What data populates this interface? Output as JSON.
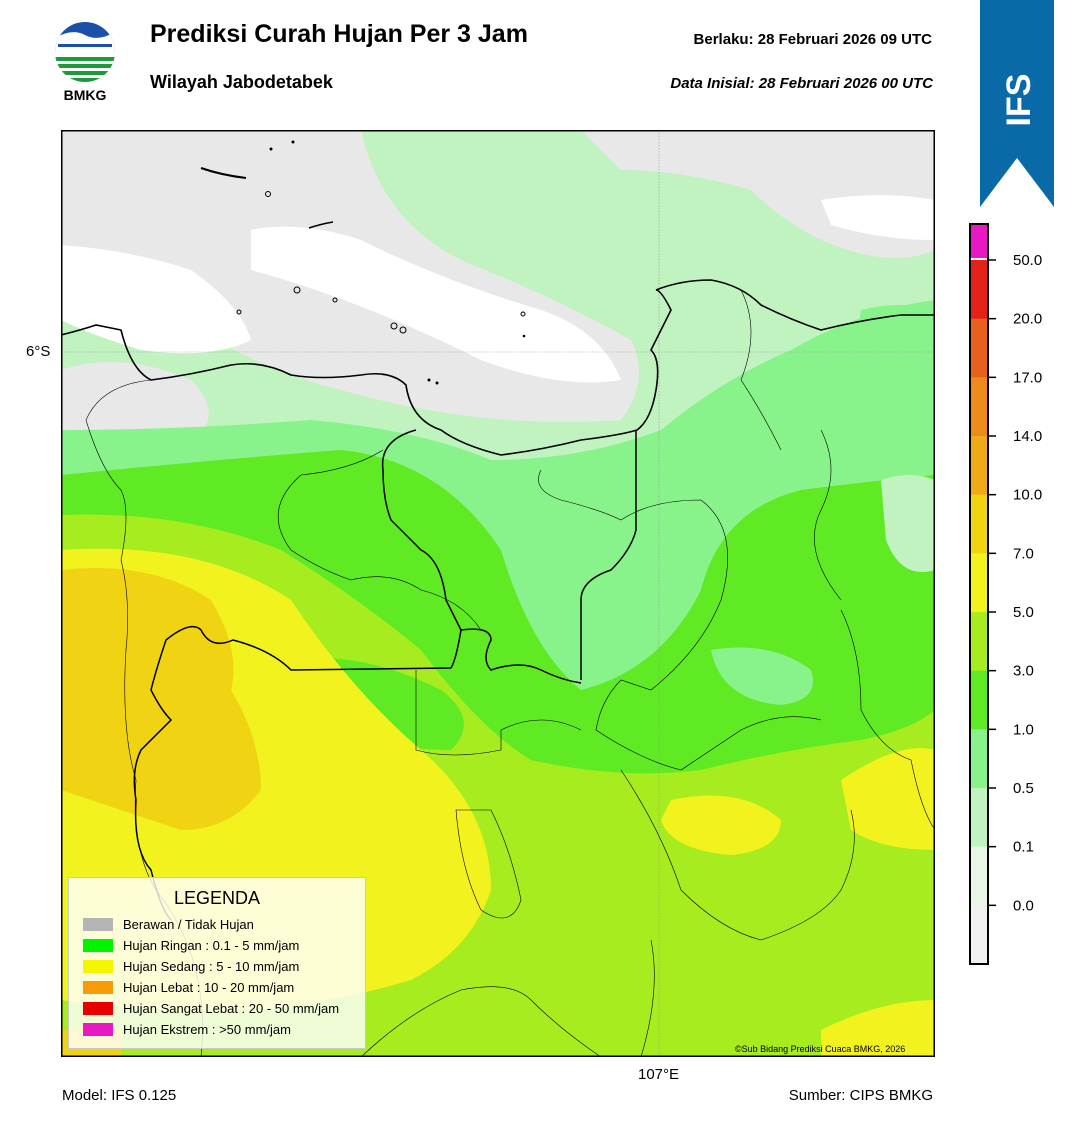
{
  "header": {
    "title": "Prediksi Curah Hujan Per 3 Jam",
    "subtitle": "Wilayah Jabodetabek",
    "valid_time": "Berlaku:  28 Februari 2026 09 UTC",
    "initial_data": "Data Inisial:  28 Februari 2026 00 UTC"
  },
  "logo": {
    "text": "BMKG",
    "icon": "bmkg-logo-icon"
  },
  "banner": {
    "text": "IFS",
    "color": "#0a6aa8"
  },
  "map": {
    "lat_label": "6°S",
    "lon_label": "107°E",
    "copyright": "©Sub Bidang Prediksi Cuaca BMKG, 2026"
  },
  "legend": {
    "title": "LEGENDA",
    "items": [
      {
        "label": "Berawan / Tidak Hujan",
        "color": "#b5b5b5"
      },
      {
        "label": "Hujan Ringan : 0.1 - 5 mm/jam",
        "color": "#00f400"
      },
      {
        "label": "Hujan Sedang : 5 - 10 mm/jam",
        "color": "#f6f600"
      },
      {
        "label": "Hujan Lebat : 10 - 20 mm/jam",
        "color": "#f79b06"
      },
      {
        "label": "Hujan Sangat Lebat : 20 - 50 mm/jam",
        "color": "#e80000"
      },
      {
        "label": "Hujan Ekstrem : >50 mm/jam",
        "color": "#e619c2"
      }
    ]
  },
  "colorbar": {
    "ticks": [
      "50.0",
      "20.0",
      "17.0",
      "14.0",
      "10.0",
      "7.0",
      "5.0",
      "3.0",
      "1.0",
      "0.5",
      "0.1",
      "0.0"
    ],
    "colors": [
      "#e819c2",
      "#e4221a",
      "#e8601c",
      "#ee8a1c",
      "#eeaa18",
      "#f0d414",
      "#f2f21e",
      "#a6ec1e",
      "#5fea24",
      "#87f38a",
      "#c0f3c0",
      "#e8f6e6",
      "#f0f0f0"
    ]
  },
  "footer": {
    "model": "Model: IFS 0.125",
    "source": "Sumber: CIPS BMKG"
  }
}
